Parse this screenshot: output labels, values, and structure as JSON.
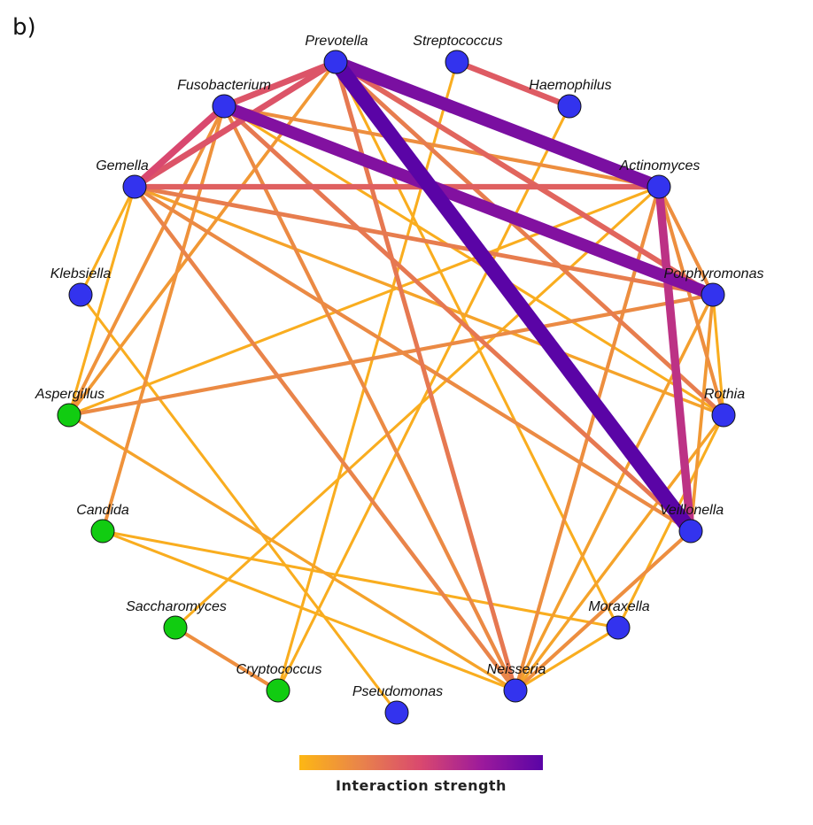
{
  "panel_label": "b)",
  "legend": {
    "title": "Interaction strength",
    "colors": [
      "#fdb714",
      "#e9844a",
      "#d9486f",
      "#9c1a9c",
      "#5a04a6"
    ]
  },
  "node_colors": {
    "bacteria": "#3333ee",
    "fungi": "#11cc11"
  },
  "nodes": [
    {
      "id": "Prevotella",
      "label": "Prevotella",
      "group": "bacteria"
    },
    {
      "id": "Streptococcus",
      "label": "Streptococcus",
      "group": "bacteria"
    },
    {
      "id": "Haemophilus",
      "label": "Haemophilus",
      "group": "bacteria"
    },
    {
      "id": "Fusobacterium",
      "label": "Fusobacterium",
      "group": "bacteria"
    },
    {
      "id": "Gemella",
      "label": "Gemella",
      "group": "bacteria"
    },
    {
      "id": "Actinomyces",
      "label": "Actinomyces",
      "group": "bacteria"
    },
    {
      "id": "Klebsiella",
      "label": "Klebsiella",
      "group": "bacteria"
    },
    {
      "id": "Porphyromonas",
      "label": "Porphyromonas",
      "group": "bacteria"
    },
    {
      "id": "Aspergillus",
      "label": "Aspergillus",
      "group": "fungi"
    },
    {
      "id": "Rothia",
      "label": "Rothia",
      "group": "bacteria"
    },
    {
      "id": "Candida",
      "label": "Candida",
      "group": "fungi"
    },
    {
      "id": "Veillonella",
      "label": "Veillonella",
      "group": "bacteria"
    },
    {
      "id": "Saccharomyces",
      "label": "Saccharomyces",
      "group": "fungi"
    },
    {
      "id": "Moraxella",
      "label": "Moraxella",
      "group": "bacteria"
    },
    {
      "id": "Cryptococcus",
      "label": "Cryptococcus",
      "group": "fungi"
    },
    {
      "id": "Pseudomonas",
      "label": "Pseudomonas",
      "group": "bacteria"
    },
    {
      "id": "Neisseria",
      "label": "Neisseria",
      "group": "bacteria"
    }
  ],
  "edges": [
    {
      "source": "Prevotella",
      "target": "Veillonella",
      "strength": 1.0
    },
    {
      "source": "Prevotella",
      "target": "Actinomyces",
      "strength": 0.88
    },
    {
      "source": "Fusobacterium",
      "target": "Porphyromonas",
      "strength": 0.85
    },
    {
      "source": "Actinomyces",
      "target": "Veillonella",
      "strength": 0.62
    },
    {
      "source": "Prevotella",
      "target": "Gemella",
      "strength": 0.45
    },
    {
      "source": "Prevotella",
      "target": "Fusobacterium",
      "strength": 0.45
    },
    {
      "source": "Streptococcus",
      "target": "Haemophilus",
      "strength": 0.42
    },
    {
      "source": "Fusobacterium",
      "target": "Gemella",
      "strength": 0.5
    },
    {
      "source": "Gemella",
      "target": "Actinomyces",
      "strength": 0.4
    },
    {
      "source": "Prevotella",
      "target": "Porphyromonas",
      "strength": 0.38
    },
    {
      "source": "Prevotella",
      "target": "Rothia",
      "strength": 0.28
    },
    {
      "source": "Prevotella",
      "target": "Neisseria",
      "strength": 0.3
    },
    {
      "source": "Prevotella",
      "target": "Aspergillus",
      "strength": 0.15
    },
    {
      "source": "Prevotella",
      "target": "Moraxella",
      "strength": 0.05
    },
    {
      "source": "Fusobacterium",
      "target": "Actinomyces",
      "strength": 0.2
    },
    {
      "source": "Fusobacterium",
      "target": "Veillonella",
      "strength": 0.3
    },
    {
      "source": "Fusobacterium",
      "target": "Neisseria",
      "strength": 0.22
    },
    {
      "source": "Fusobacterium",
      "target": "Aspergillus",
      "strength": 0.18
    },
    {
      "source": "Fusobacterium",
      "target": "Rothia",
      "strength": 0.05
    },
    {
      "source": "Fusobacterium",
      "target": "Candida",
      "strength": 0.18
    },
    {
      "source": "Gemella",
      "target": "Porphyromonas",
      "strength": 0.28
    },
    {
      "source": "Gemella",
      "target": "Veillonella",
      "strength": 0.22
    },
    {
      "source": "Gemella",
      "target": "Neisseria",
      "strength": 0.25
    },
    {
      "source": "Gemella",
      "target": "Rothia",
      "strength": 0.1
    },
    {
      "source": "Gemella",
      "target": "Aspergillus",
      "strength": 0.05
    },
    {
      "source": "Gemella",
      "target": "Klebsiella",
      "strength": 0.05
    },
    {
      "source": "Actinomyces",
      "target": "Porphyromonas",
      "strength": 0.2
    },
    {
      "source": "Actinomyces",
      "target": "Rothia",
      "strength": 0.2
    },
    {
      "source": "Actinomyces",
      "target": "Neisseria",
      "strength": 0.2
    },
    {
      "source": "Actinomyces",
      "target": "Aspergillus",
      "strength": 0.05
    },
    {
      "source": "Actinomyces",
      "target": "Saccharomyces",
      "strength": 0.05
    },
    {
      "source": "Porphyromonas",
      "target": "Aspergillus",
      "strength": 0.22
    },
    {
      "source": "Porphyromonas",
      "target": "Veillonella",
      "strength": 0.15
    },
    {
      "source": "Porphyromonas",
      "target": "Neisseria",
      "strength": 0.12
    },
    {
      "source": "Porphyromonas",
      "target": "Rothia",
      "strength": 0.05
    },
    {
      "source": "Rothia",
      "target": "Neisseria",
      "strength": 0.1
    },
    {
      "source": "Rothia",
      "target": "Moraxella",
      "strength": 0.05
    },
    {
      "source": "Veillonella",
      "target": "Neisseria",
      "strength": 0.2
    },
    {
      "source": "Streptococcus",
      "target": "Cryptococcus",
      "strength": 0.05
    },
    {
      "source": "Haemophilus",
      "target": "Cryptococcus",
      "strength": 0.05
    },
    {
      "source": "Saccharomyces",
      "target": "Cryptococcus",
      "strength": 0.2
    },
    {
      "source": "Aspergillus",
      "target": "Neisseria",
      "strength": 0.1
    },
    {
      "source": "Candida",
      "target": "Moraxella",
      "strength": 0.05
    },
    {
      "source": "Candida",
      "target": "Neisseria",
      "strength": 0.05
    },
    {
      "source": "Klebsiella",
      "target": "Pseudomonas",
      "strength": 0.05
    },
    {
      "source": "Neisseria",
      "target": "Moraxella",
      "strength": 0.05
    }
  ]
}
